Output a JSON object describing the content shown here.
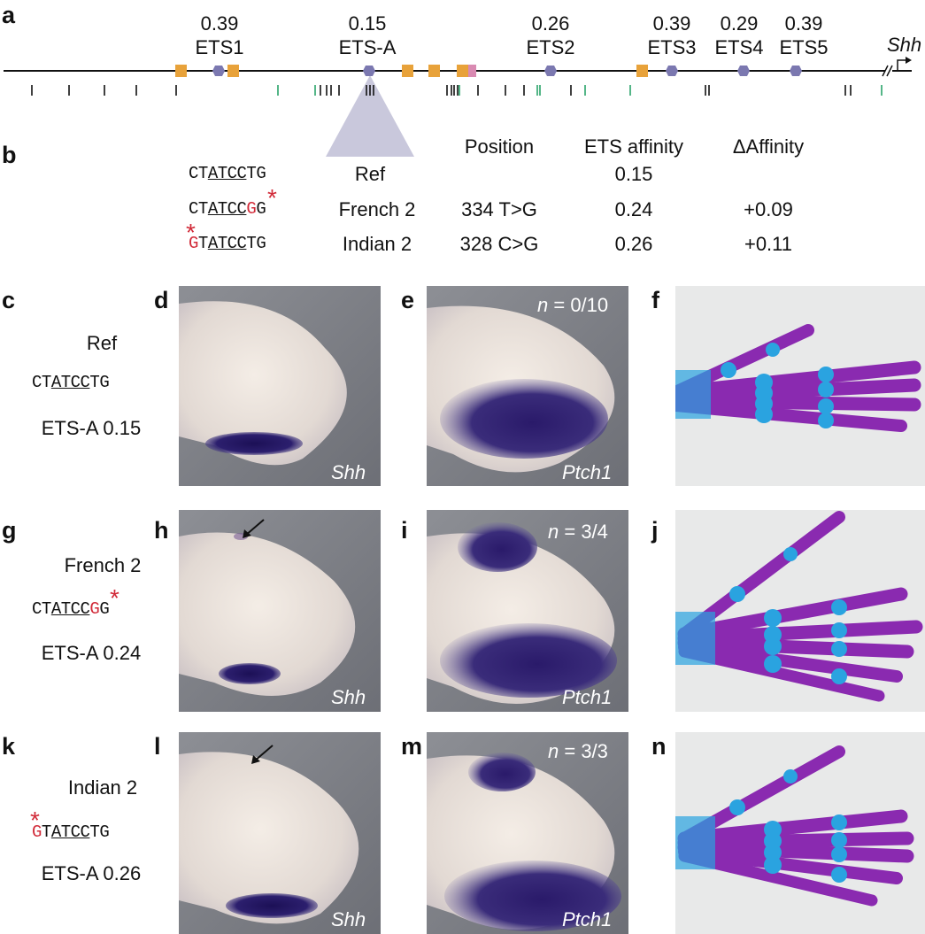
{
  "panel_a": {
    "label": "a",
    "gene": "Shh",
    "sites": [
      {
        "name": "ETS1",
        "affinity": "0.39"
      },
      {
        "name": "ETS-A",
        "affinity": "0.15"
      },
      {
        "name": "ETS2",
        "affinity": "0.26"
      },
      {
        "name": "ETS3",
        "affinity": "0.39"
      },
      {
        "name": "ETS4",
        "affinity": "0.29"
      },
      {
        "name": "ETS5",
        "affinity": "0.39"
      }
    ],
    "colors": {
      "ets_site": "#7b78b0",
      "orange_box": "#e8a23a",
      "pink_box": "#d98ab2",
      "green_tick": "#2aa36a",
      "black_tick": "#111111"
    }
  },
  "panel_b": {
    "label": "b",
    "headers": {
      "position": "Position",
      "affinity": "ETS affinity",
      "delta": "ΔAffinity"
    },
    "rows": [
      {
        "seq_pre": "CT",
        "seq_ul": "ATCC",
        "seq_mid": "T",
        "seq_red": "",
        "seq_post": "G",
        "name": "Ref",
        "position": "",
        "affinity": "0.15",
        "delta": ""
      },
      {
        "seq_pre": "CT",
        "seq_ul": "ATCC",
        "seq_mid": "",
        "seq_red": "G",
        "seq_post": "G",
        "name": "French 2",
        "position": "334 T>G",
        "affinity": "0.24",
        "delta": "+0.09"
      },
      {
        "seq_pre": "",
        "seq_red": "G",
        "seq_t": "T",
        "seq_ul": "ATCC",
        "seq_post": "TG",
        "name": "Indian 2",
        "position": "328 C>G",
        "affinity": "0.26",
        "delta": "+0.11"
      }
    ]
  },
  "rows": [
    {
      "labels": [
        "c",
        "d",
        "e",
        "f"
      ],
      "name": "Ref",
      "seq_pre": "CT",
      "seq_ul": "ATCC",
      "seq_post": "TG",
      "affinity_text": "ETS-A 0.15",
      "shh_label": "Shh",
      "ptch_label": "Ptch1",
      "n_prefix": "n",
      "n_value": " = 0/10"
    },
    {
      "labels": [
        "g",
        "h",
        "i",
        "j"
      ],
      "name": "French 2",
      "seq_pre": "CT",
      "seq_ul": "ATCC",
      "seq_red": "G",
      "seq_post": "G",
      "affinity_text": "ETS-A 0.24",
      "shh_label": "Shh",
      "ptch_label": "Ptch1",
      "n_prefix": "n",
      "n_value": " = 3/4"
    },
    {
      "labels": [
        "k",
        "l",
        "m",
        "n"
      ],
      "name": "Indian 2",
      "seq_red": "G",
      "seq_pre": "T",
      "seq_ul": "ATCC",
      "seq_post": "TG",
      "affinity_text": "ETS-A 0.26",
      "shh_label": "Shh",
      "ptch_label": "Ptch1",
      "n_prefix": "n",
      "n_value": " = 3/3"
    }
  ]
}
